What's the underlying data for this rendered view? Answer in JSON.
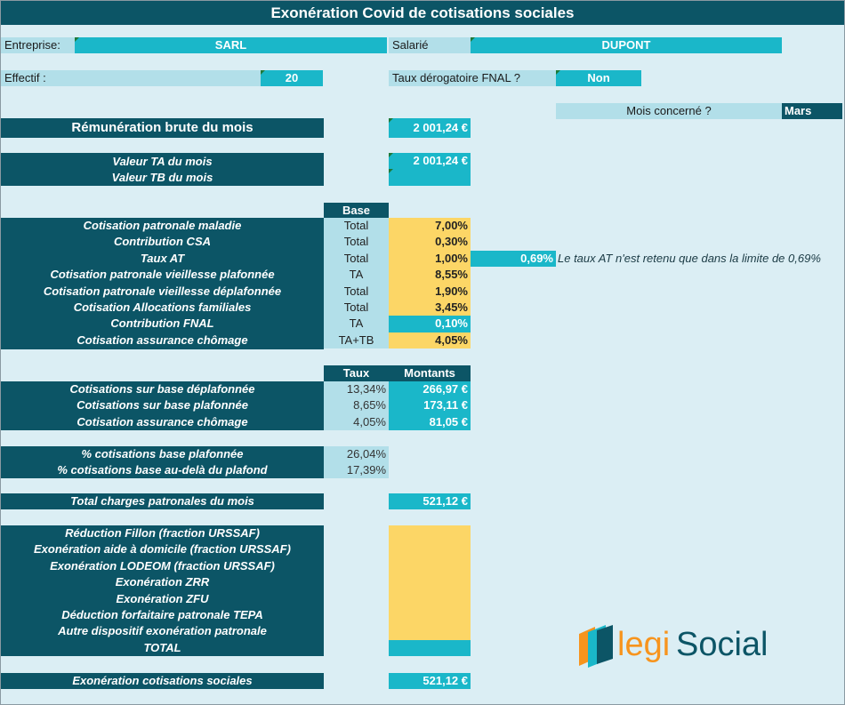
{
  "title": "Exonération Covid de cotisations sociales",
  "header": {
    "entreprise_label": "Entreprise:",
    "entreprise_value": "SARL",
    "salarie_label": "Salarié",
    "salarie_value": "DUPONT",
    "effectif_label": "Effectif :",
    "effectif_value": "20",
    "fnal_label": "Taux dérogatoire FNAL ?",
    "fnal_value": "Non",
    "mois_label": "Mois concerné ?",
    "mois_value": "Mars"
  },
  "remuneration": {
    "label": "Rémunération brute du mois",
    "value": "2 001,24 €"
  },
  "valeurs": {
    "ta_label": "Valeur TA du mois",
    "ta_value": "2 001,24 €",
    "tb_label": "Valeur TB du mois",
    "tb_value": ""
  },
  "cotisations": {
    "base_header": "Base",
    "rows": [
      {
        "label": "Cotisation patronale maladie",
        "base": "Total",
        "rate": "7,00%"
      },
      {
        "label": "Contribution CSA",
        "base": "Total",
        "rate": "0,30%"
      },
      {
        "label": "Taux AT",
        "base": "Total",
        "rate": "1,00%"
      },
      {
        "label": "Cotisation patronale vieillesse plafonnée",
        "base": "TA",
        "rate": "8,55%"
      },
      {
        "label": "Cotisation patronale vieillesse déplafonnée",
        "base": "Total",
        "rate": "1,90%"
      },
      {
        "label": "Cotisation Allocations familiales",
        "base": "Total",
        "rate": "3,45%"
      },
      {
        "label": "Contribution FNAL",
        "base": "TA",
        "rate": "0,10%"
      },
      {
        "label": "Cotisation assurance chômage",
        "base": "TA+TB",
        "rate": "4,05%"
      }
    ],
    "at_limit_value": "0,69%",
    "at_note": "Le taux AT n'est retenu que dans la limite de 0,69%"
  },
  "montants": {
    "taux_header": "Taux",
    "montants_header": "Montants",
    "rows": [
      {
        "label": "Cotisations sur base déplafonnée",
        "taux": "13,34%",
        "montant": "266,97 €"
      },
      {
        "label": "Cotisations sur base plafonnée",
        "taux": "8,65%",
        "montant": "173,11 €"
      },
      {
        "label": "Cotisation assurance chômage",
        "taux": "4,05%",
        "montant": "81,05 €"
      }
    ]
  },
  "pourcentages": {
    "rows": [
      {
        "label": "% cotisations base plafonnée",
        "value": "26,04%"
      },
      {
        "label": "% cotisations base au-delà du plafond",
        "value": "17,39%"
      }
    ]
  },
  "total_charges": {
    "label": "Total charges patronales du mois",
    "value": "521,12 €"
  },
  "exonerations": {
    "rows": [
      {
        "label": "Réduction Fillon (fraction URSSAF)",
        "value": ""
      },
      {
        "label": "Exonération aide à domicile (fraction URSSAF)",
        "value": ""
      },
      {
        "label": "Exonération LODEOM (fraction URSSAF)",
        "value": ""
      },
      {
        "label": "Exonération ZRR",
        "value": ""
      },
      {
        "label": "Exonération ZFU",
        "value": ""
      },
      {
        "label": "Déduction forfaitaire patronale TEPA",
        "value": ""
      },
      {
        "label": "Autre dispositif exonération patronale",
        "value": ""
      }
    ],
    "total_label": "TOTAL",
    "total_value": ""
  },
  "exoneration_finale": {
    "label": "Exonération cotisations sociales",
    "value": "521,12 €"
  },
  "logo": {
    "text_legi": "legi",
    "text_social": "Social"
  },
  "colors": {
    "dark": "#0c5566",
    "teal": "#1ab7c9",
    "light": "#b2dfe9",
    "yellow": "#fcd666",
    "background": "#dbeef4"
  }
}
